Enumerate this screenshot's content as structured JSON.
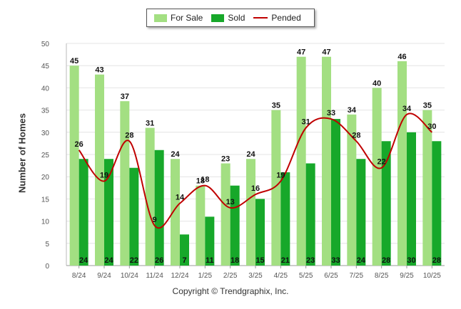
{
  "chart_data": {
    "type": "bar",
    "categories": [
      "8/24",
      "9/24",
      "10/24",
      "11/24",
      "12/24",
      "1/25",
      "2/25",
      "3/25",
      "4/25",
      "5/25",
      "6/25",
      "7/25",
      "8/25",
      "9/25",
      "10/25"
    ],
    "series": [
      {
        "name": "For Sale",
        "kind": "bar",
        "color": "#a3df82",
        "values": [
          45,
          43,
          37,
          31,
          24,
          18,
          23,
          24,
          35,
          47,
          47,
          34,
          40,
          46,
          35
        ]
      },
      {
        "name": "Sold",
        "kind": "bar",
        "color": "#17a82a",
        "values": [
          24,
          24,
          22,
          26,
          7,
          11,
          18,
          15,
          21,
          23,
          33,
          24,
          28,
          30,
          28
        ]
      },
      {
        "name": "Pended",
        "kind": "line",
        "color": "#c00000",
        "values": [
          26,
          19,
          28,
          9,
          14,
          18,
          13,
          16,
          19,
          31,
          33,
          28,
          22,
          34,
          30
        ]
      }
    ],
    "ylabel": "Number of Homes",
    "ylim": [
      0,
      50
    ],
    "yticks": [
      0,
      5,
      10,
      15,
      20,
      25,
      30,
      35,
      40,
      45,
      50
    ],
    "grid": true,
    "legend_position": "top-center"
  },
  "legend": {
    "for_sale": "For Sale",
    "sold": "Sold",
    "pended": "Pended"
  },
  "footer": {
    "copyright": "Copyright © Trendgraphix, Inc."
  }
}
